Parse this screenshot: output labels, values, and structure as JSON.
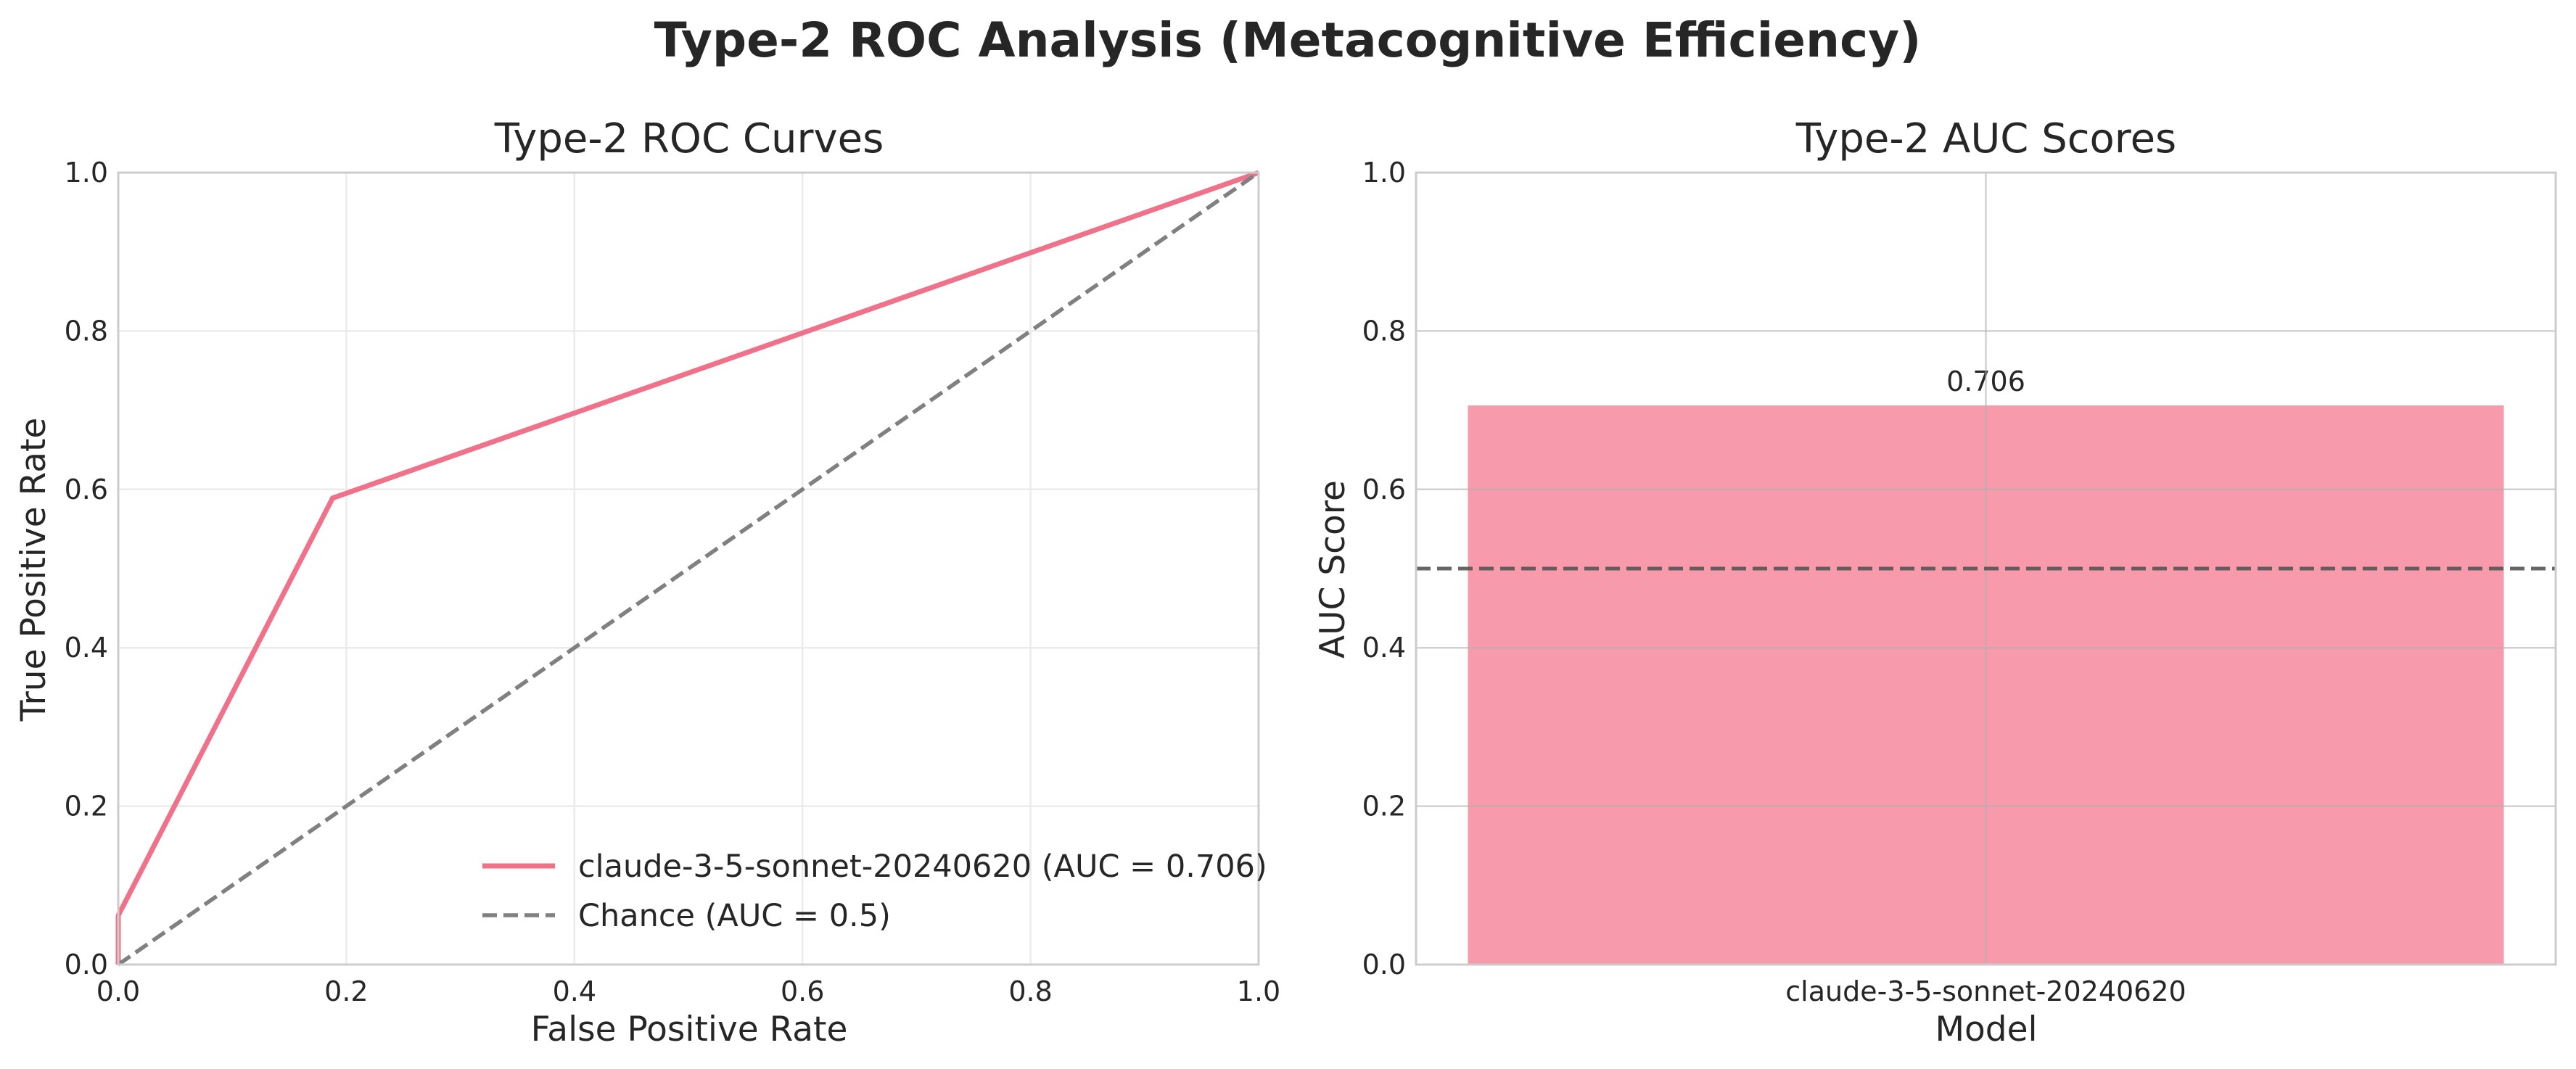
{
  "figure": {
    "suptitle": "Type-2 ROC Analysis (Metacognitive Efficiency)"
  },
  "chart_data": [
    {
      "type": "line",
      "title": "Type-2 ROC Curves",
      "xlabel": "False Positive Rate",
      "ylabel": "True Positive Rate",
      "xlim": [
        0.0,
        1.0
      ],
      "ylim": [
        0.0,
        1.0
      ],
      "xticks": [
        "0.0",
        "0.2",
        "0.4",
        "0.6",
        "0.8",
        "1.0"
      ],
      "yticks": [
        "0.0",
        "0.2",
        "0.4",
        "0.6",
        "0.8",
        "1.0"
      ],
      "grid": true,
      "legend_position": "lower-right",
      "series": [
        {
          "name": "claude-3-5-sonnet-20240620 (AUC = 0.706)",
          "x": [
            0.0,
            0.0,
            0.188,
            1.0
          ],
          "y": [
            0.0,
            0.062,
            0.589,
            1.0
          ],
          "color": "#f0728a",
          "style": "solid"
        },
        {
          "name": "Chance (AUC = 0.5)",
          "x": [
            0.0,
            1.0
          ],
          "y": [
            0.0,
            1.0
          ],
          "color": "#808080",
          "style": "dashed"
        }
      ]
    },
    {
      "type": "bar",
      "title": "Type-2 AUC Scores",
      "xlabel": "Model",
      "ylabel": "AUC Score",
      "ylim": [
        0.0,
        1.0
      ],
      "yticks": [
        "0.0",
        "0.2",
        "0.4",
        "0.6",
        "0.8",
        "1.0"
      ],
      "grid": true,
      "categories": [
        "claude-3-5-sonnet-20240620"
      ],
      "values": [
        0.706
      ],
      "data_labels": [
        "0.706"
      ],
      "bar_color": "#f79aac",
      "reference_line": {
        "y": 0.5,
        "color": "#555555",
        "style": "dashed"
      }
    }
  ]
}
